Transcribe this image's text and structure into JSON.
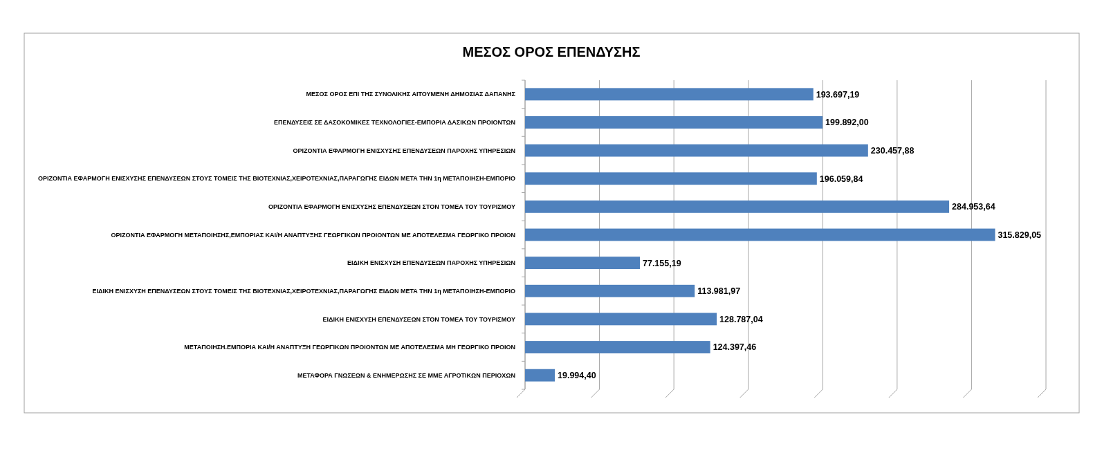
{
  "chart_data": {
    "type": "bar",
    "orientation": "horizontal",
    "title": "ΜΕΣΟΣ ΟΡΟΣ ΕΠΕΝΔΥΣΗΣ",
    "categories": [
      "ΜΕΣΟΣ ΟΡΟΣ ΕΠΙ ΤΗΣ ΣΥΝΟΛΙΚΗΣ ΑΙΤΟΥΜΕΝΗ ΔΗΜΟΣΙΑΣ ΔΑΠΑΝΗΣ",
      "ΕΠΕΝΔΥΣΕΙΣ ΣΕ ΔΑΣΟΚΟΜΙΚΕΣ ΤΕΧΝΟΛΟΓΙΕΣ-ΕΜΠΟΡΙΑ ΔΑΣΙΚΩΝ ΠΡΟΙΟΝΤΩΝ",
      "ΟΡΙΖΟΝΤΙΑ ΕΦΑΡΜΟΓΗ ΕΝΙΣΧΥΣΗΣ ΕΠΕΝΔΥΣΕΩΝ ΠΑΡΟΧΗΣ ΥΠΗΡΕΣΙΩΝ",
      "ΟΡΙΖΟΝΤΙΑ ΕΦΑΡΜΟΓΗ ΕΝΙΣΧΥΣΗΣ ΕΠΕΝΔΥΣΕΩΝ ΣΤΟΥΣ ΤΟΜΕΙΣ ΤΗΣ ΒΙΟΤΕΧΝΙΑΣ,ΧΕΙΡΟΤΕΧΝΙΑΣ,ΠΑΡΑΓΩΓΗΣ ΕΙΔΩΝ ΜΕΤΑ ΤΗΝ 1η ΜΕΤΑΠΟΙΗΣΗ-ΕΜΠΟΡΙΟ",
      "ΟΡΙΖΟΝΤΙΑ ΕΦΑΡΜΟΓΗ ΕΝΙΣΧΥΣΗΣ ΕΠΕΝΔΥΣΕΩΝ ΣΤΟΝ ΤΟΜΕΑ ΤΟΥ ΤΟΥΡΙΣΜΟΥ",
      "ΟΡΙΖΟΝΤΙΑ ΕΦΑΡΜΟΓΗ ΜΕΤΑΠΟΙΗΣΗΣ,ΕΜΠΟΡΙΑΣ ΚΑΙ/Η ΑΝΑΠΤΥΞΗΣ ΓΕΩΡΓΙΚΩΝ ΠΡΟΙΟΝΤΩΝ ΜΕ ΑΠΟΤΕΛΕΣΜΑ ΓΕΩΡΓΙΚΟ ΠΡΟΙΟΝ",
      "ΕΙΔΙΚΗ ΕΝΙΣΧΥΣΗ ΕΠΕΝΔΥΣΕΩΝ ΠΑΡΟΧΗΣ ΥΠΗΡΕΣΙΩΝ",
      "ΕΙΔΙΚΗ ΕΝΙΣΧΥΣΗ ΕΠΕΝΔΥΣΕΩΝ ΣΤΟΥΣ ΤΟΜΕΙΣ ΤΗΣ ΒΙΟΤΕΧΝΙΑΣ,ΧΕΙΡΟΤΕΧΝΙΑΣ,ΠΑΡΑΓΩΓΗΣ ΕΙΔΩΝ ΜΕΤΑ ΤΗΝ 1η ΜΕΤΑΠΟΙΗΣΗ-ΕΜΠΟΡΙΟ",
      "ΕΙΔΙΚΗ ΕΝΙΣΧΥΣΗ ΕΠΕΝΔΥΣΕΩΝ ΣΤΟΝ ΤΟΜΕΑ ΤΟΥ ΤΟΥΡΙΣΜΟΥ",
      "ΜΕΤΑΠΟΙΗΣΗ.ΕΜΠΟΡΙΑ ΚΑΙ/Η ΑΝΑΠΤΥΞΗ ΓΕΩΡΓΙΚΩΝ ΠΡΟΙΟΝΤΩΝ ΜΕ ΑΠΟΤΕΛΕΣΜΑ ΜΗ ΓΕΩΡΓΙΚΟ ΠΡΟΙΟΝ",
      "ΜΕΤΑΦΟΡΑ ΓΝΩΣΕΩΝ & ΕΝΗΜΕΡΩΣΗΣ ΣΕ ΜΜΕ ΑΓΡΟΤΙΚΩΝ ΠΕΡΙΟΧΩΝ"
    ],
    "values": [
      193697.19,
      199892.0,
      230457.88,
      196059.84,
      284953.64,
      315829.05,
      77155.19,
      113981.97,
      128787.04,
      124397.46,
      19994.4
    ],
    "value_labels": [
      "193.697,19",
      "199.892,00",
      "230.457,88",
      "196.059,84",
      "284.953,64",
      "315.829,05",
      "77.155,19",
      "113.981,97",
      "128.787,04",
      "124.397,46",
      "19.994,40"
    ],
    "color": "#4f81bd",
    "xlim": [
      0,
      350000
    ],
    "xticks": [
      {
        "value": 0,
        "label": null
      },
      {
        "value": 50000,
        "label": null
      },
      {
        "value": 100000,
        "label": null
      },
      {
        "value": 150000,
        "label": null
      },
      {
        "value": 200000,
        "label": null
      },
      {
        "value": 250000,
        "label": null
      },
      {
        "value": 300000,
        "label": null
      },
      {
        "value": 350000,
        "label": null
      }
    ],
    "grid": "x",
    "tick_labels": "y"
  }
}
